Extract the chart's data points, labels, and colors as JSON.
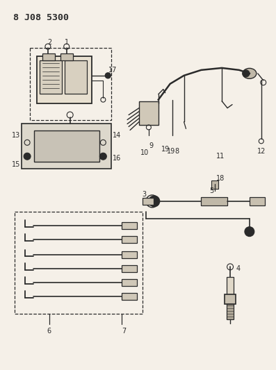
{
  "title": "8 J08 5300",
  "bg_color": "#f5f0e8",
  "fig_width": 3.97,
  "fig_height": 5.33,
  "dpi": 100,
  "line_color": "#2a2a2a",
  "label_fontsize": 7.0,
  "title_fontsize": 9.5
}
